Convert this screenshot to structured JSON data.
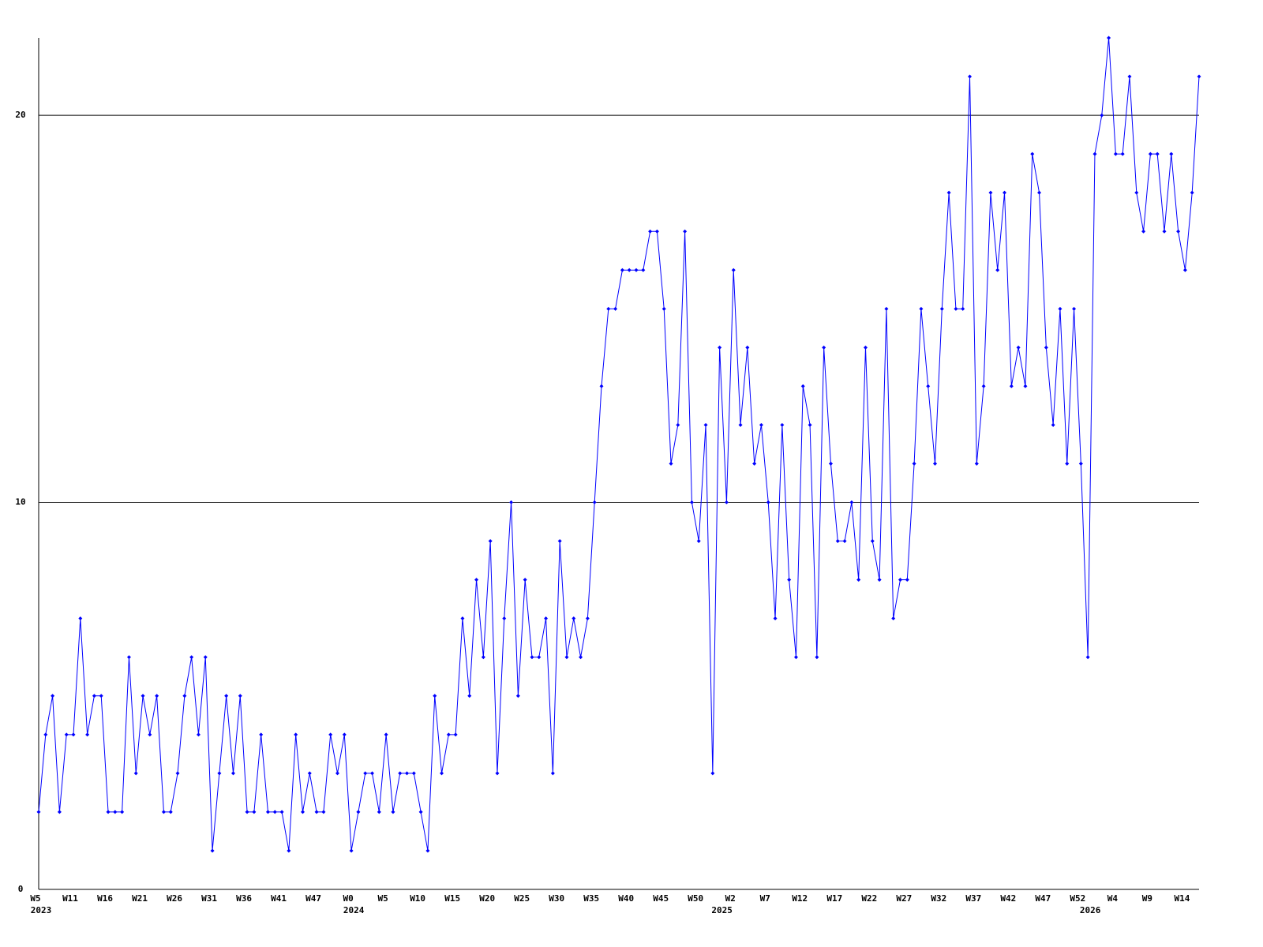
{
  "chart_data": {
    "type": "line",
    "categories": [
      "W5",
      null,
      null,
      null,
      null,
      "W11",
      null,
      null,
      null,
      null,
      "W16",
      null,
      null,
      null,
      null,
      "W21",
      null,
      null,
      null,
      null,
      "W26",
      null,
      null,
      null,
      null,
      "W31",
      null,
      null,
      null,
      null,
      "W36",
      null,
      null,
      null,
      null,
      "W41",
      null,
      null,
      null,
      null,
      "W47",
      null,
      null,
      null,
      null,
      "W0",
      null,
      null,
      null,
      null,
      "W5",
      null,
      null,
      null,
      null,
      "W10",
      null,
      null,
      null,
      null,
      "W15",
      null,
      null,
      null,
      null,
      "W20",
      null,
      null,
      null,
      null,
      "W25",
      null,
      null,
      null,
      null,
      "W30",
      null,
      null,
      null,
      null,
      "W35",
      null,
      null,
      null,
      null,
      "W40",
      null,
      null,
      null,
      null,
      "W45",
      null,
      null,
      null,
      null,
      "W50",
      null,
      null,
      null,
      null,
      "W2",
      null,
      null,
      null,
      null,
      "W7",
      null,
      null,
      null,
      null,
      "W12",
      null,
      null,
      null,
      null,
      "W17",
      null,
      null,
      null,
      null,
      "W22",
      null,
      null,
      null,
      null,
      "W27",
      null,
      null,
      null,
      null,
      "W32",
      null,
      null,
      null,
      null,
      "W37",
      null,
      null,
      null,
      null,
      "W42",
      null,
      null,
      null,
      null,
      "W47",
      null,
      null,
      null,
      null,
      "W52",
      null,
      null,
      null,
      null,
      "W4",
      null,
      null,
      null,
      null,
      "W9",
      null,
      null,
      null,
      null,
      "W14",
      null,
      null
    ],
    "x_year_labels": [
      "2023",
      null,
      null,
      null,
      null,
      null,
      null,
      null,
      null,
      null,
      null,
      null,
      null,
      null,
      null,
      null,
      null,
      null,
      null,
      null,
      null,
      null,
      null,
      null,
      null,
      null,
      null,
      null,
      null,
      null,
      null,
      null,
      null,
      null,
      null,
      null,
      null,
      null,
      null,
      null,
      null,
      null,
      null,
      null,
      null,
      "2024",
      null,
      null,
      null,
      null,
      null,
      null,
      null,
      null,
      null,
      null,
      null,
      null,
      null,
      null,
      null,
      null,
      null,
      null,
      null,
      null,
      null,
      null,
      null,
      null,
      null,
      null,
      null,
      null,
      null,
      null,
      null,
      null,
      null,
      null,
      null,
      null,
      null,
      null,
      null,
      null,
      null,
      null,
      null,
      null,
      null,
      null,
      null,
      null,
      null,
      null,
      null,
      null,
      "2025",
      null,
      null,
      null,
      null,
      null,
      null,
      null,
      null,
      null,
      null,
      null,
      null,
      null,
      null,
      null,
      null,
      null,
      null,
      null,
      null,
      null,
      null,
      null,
      null,
      null,
      null,
      null,
      null,
      null,
      null,
      null,
      null,
      null,
      null,
      null,
      null,
      null,
      null,
      null,
      null,
      null,
      null,
      null,
      null,
      null,
      null,
      null,
      null,
      null,
      null,
      null,
      null,
      "2026",
      null,
      null,
      null,
      null,
      null,
      null,
      null,
      null,
      null,
      null,
      null,
      null,
      null,
      null,
      null,
      null
    ],
    "values": [
      2,
      4,
      5,
      2,
      4,
      4,
      7,
      4,
      5,
      5,
      2,
      2,
      2,
      6,
      3,
      5,
      4,
      5,
      2,
      2,
      3,
      5,
      6,
      4,
      6,
      1,
      3,
      5,
      3,
      5,
      2,
      2,
      4,
      2,
      2,
      2,
      1,
      4,
      2,
      3,
      2,
      2,
      4,
      3,
      4,
      1,
      2,
      3,
      3,
      2,
      4,
      2,
      3,
      3,
      3,
      2,
      1,
      5,
      3,
      4,
      4,
      7,
      5,
      8,
      6,
      9,
      3,
      7,
      10,
      5,
      8,
      6,
      6,
      7,
      3,
      9,
      6,
      7,
      6,
      7,
      10,
      13,
      15,
      15,
      16,
      16,
      16,
      16,
      17,
      17,
      15,
      11,
      12,
      17,
      10,
      9,
      12,
      3,
      14,
      10,
      16,
      12,
      14,
      11,
      12,
      10,
      7,
      12,
      8,
      6,
      13,
      12,
      6,
      14,
      11,
      9,
      9,
      10,
      8,
      14,
      9,
      8,
      15,
      7,
      8,
      8,
      11,
      15,
      13,
      11,
      15,
      18,
      15,
      15,
      21,
      11,
      13,
      18,
      16,
      18,
      13,
      14,
      13,
      19,
      18,
      14,
      12,
      15,
      11,
      15,
      11,
      6,
      19,
      20,
      22,
      19,
      19,
      21,
      18,
      17,
      19,
      19,
      17,
      19,
      17,
      16,
      18,
      21
    ],
    "color": "#0000ff",
    "ylim": [
      0,
      22
    ],
    "yticks": [
      0,
      10,
      20
    ],
    "grid": true
  }
}
